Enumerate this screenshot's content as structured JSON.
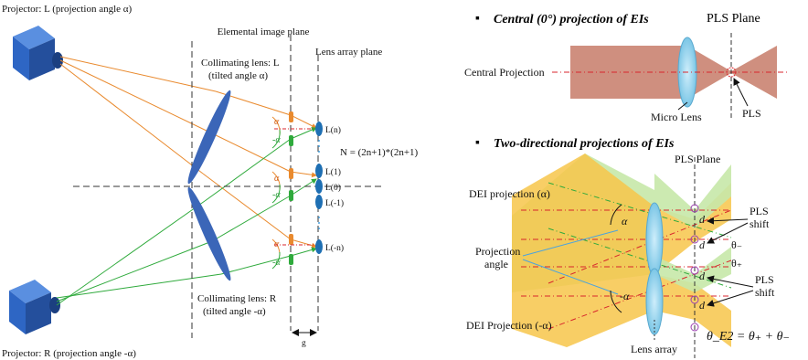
{
  "left": {
    "projector_l_label": "Projector: L (projection angle α)",
    "projector_r_label": "Projector: R (projection angle -α)",
    "elemental_image_plane": "Elemental image plane",
    "lens_array_plane": "Lens array plane",
    "collimating_l_line1": "Collimating lens: L",
    "collimating_l_line2": "(tilted angle α)",
    "collimating_r_line1": "Collimating lens: R",
    "collimating_r_line2": "(tilted angle -α)",
    "lens_labels": [
      "L(n)",
      "L(1)",
      "L(0)",
      "L(-1)",
      "L(-n)"
    ],
    "formula": "N = (2n+1)*(2n+1)",
    "angle_pos": "α",
    "angle_neg": "-α",
    "gap_label": "g"
  },
  "right_top": {
    "bullet": "▪",
    "title": "Central (0°) projection of EIs",
    "pls_plane": "PLS Plane",
    "central_projection": "Central Projection",
    "micro_lens": "Micro Lens",
    "pls": "PLS"
  },
  "right_bottom": {
    "bullet": "▪",
    "title": "Two-directional projections of EIs",
    "pls_plane": "PLS Plane",
    "dei_alpha": "DEI projection (α)",
    "dei_neg_alpha": "DEI Projection (-α)",
    "projection_angle_1": "Projection",
    "projection_angle_2": "angle",
    "angle_pos": "α",
    "angle_neg": "-α",
    "pls_shift_1": "PLS",
    "pls_shift_2": "shift",
    "d": "d",
    "theta_minus": "θ₋",
    "theta_plus": "θ₊",
    "lens_array": "Lens array",
    "formula": "θ_E2 = θ₊ + θ₋"
  },
  "colors": {
    "orange": "#e98a2e",
    "green": "#2faa3c",
    "lens_blue": "#3b66b8",
    "projector_blue": "#2e66c4",
    "red_dash": "#d8262c",
    "salmon": "#cf8f7f",
    "yellow": "#f7c64a",
    "light_green": "#c7e8a8"
  }
}
